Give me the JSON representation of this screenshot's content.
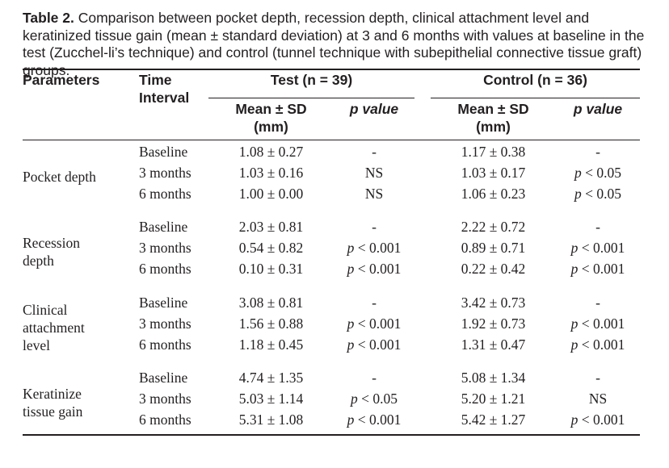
{
  "caption": {
    "label": "Table 2.",
    "text": " Comparison between pocket depth, recession depth, clinical attachment level and keratinized tissue gain (mean ± standard deviation) at 3 and 6 months with values at baseline in the test (Zucchel-li’s technique) and control (tunnel technique with subepithelial connective tissue graft) groups."
  },
  "header": {
    "parameters": "Parameters",
    "time_interval_1": "Time",
    "time_interval_2": "Interval",
    "test_group": "Test (n = 39)",
    "control_group": "Control (n = 36)",
    "mean_sd_1": "Mean ± SD",
    "mean_sd_2": "(mm)",
    "control_mean_sd_1": "Mean ± SD",
    "control_mean_sd_2": "(mm)",
    "p_value": "p value",
    "control_p_value": "p value"
  },
  "groups": [
    {
      "parameter_lines": [
        "Pocket depth"
      ],
      "rows": [
        {
          "interval": "Baseline",
          "test_mean": "1.08 ± 0.27",
          "test_p": "-",
          "control_mean": "1.17 ± 0.38",
          "control_p": "-"
        },
        {
          "interval": "3 months",
          "test_mean": "1.03 ± 0.16",
          "test_p": "NS",
          "control_mean": "1.03 ± 0.17",
          "control_p": "p < 0.05"
        },
        {
          "interval": "6 months",
          "test_mean": "1.00 ± 0.00",
          "test_p": "NS",
          "control_mean": "1.06 ± 0.23",
          "control_p": "p < 0.05"
        }
      ]
    },
    {
      "parameter_lines": [
        "Recession",
        "depth"
      ],
      "rows": [
        {
          "interval": "Baseline",
          "test_mean": "2.03 ± 0.81",
          "test_p": "-",
          "control_mean": "2.22 ± 0.72",
          "control_p": "-"
        },
        {
          "interval": "3 months",
          "test_mean": "0.54 ± 0.82",
          "test_p": "p < 0.001",
          "control_mean": "0.89 ± 0.71",
          "control_p": "p < 0.001"
        },
        {
          "interval": "6 months",
          "test_mean": "0.10 ± 0.31",
          "test_p": "p < 0.001",
          "control_mean": "0.22 ± 0.42",
          "control_p": "p < 0.001"
        }
      ]
    },
    {
      "parameter_lines": [
        "Clinical",
        "attachment",
        "level"
      ],
      "rows": [
        {
          "interval": "Baseline",
          "test_mean": "3.08 ± 0.81",
          "test_p": "-",
          "control_mean": "3.42 ± 0.73",
          "control_p": "-"
        },
        {
          "interval": "3 months",
          "test_mean": "1.56 ± 0.88",
          "test_p": "p < 0.001",
          "control_mean": "1.92 ± 0.73",
          "control_p": "p < 0.001"
        },
        {
          "interval": "6 months",
          "test_mean": "1.18 ± 0.45",
          "test_p": "p < 0.001",
          "control_mean": "1.31 ± 0.47",
          "control_p": "p < 0.001"
        }
      ]
    },
    {
      "parameter_lines": [
        "Keratinize",
        "tissue gain"
      ],
      "rows": [
        {
          "interval": "Baseline",
          "test_mean": "4.74 ± 1.35",
          "test_p": "-",
          "control_mean": "5.08 ± 1.34",
          "control_p": "-"
        },
        {
          "interval": "3 months",
          "test_mean": "5.03 ± 1.14",
          "test_p": "p < 0.05",
          "control_mean": "5.20 ± 1.21",
          "control_p": "NS"
        },
        {
          "interval": "6 months",
          "test_mean": "5.31 ± 1.08",
          "test_p": "p < 0.001",
          "control_mean": "5.42 ± 1.27",
          "control_p": "p < 0.001"
        }
      ]
    }
  ]
}
